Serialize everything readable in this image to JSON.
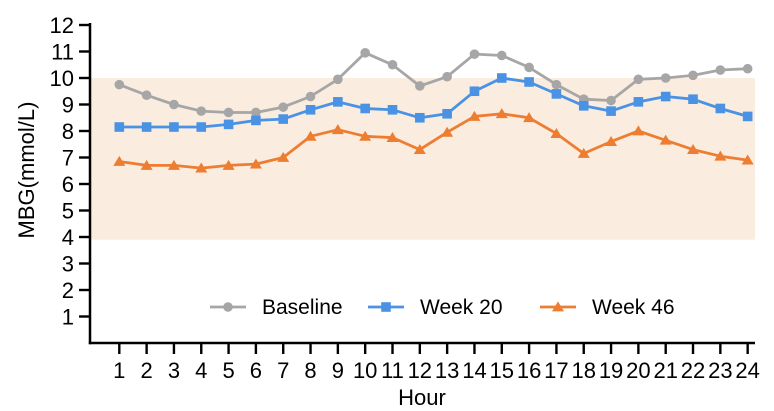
{
  "chart_data": {
    "type": "line",
    "title": "",
    "xlabel": "Hour",
    "ylabel": "MBG(mmol/L)",
    "x": [
      1,
      2,
      3,
      4,
      5,
      6,
      7,
      8,
      9,
      10,
      11,
      12,
      13,
      14,
      15,
      16,
      17,
      18,
      19,
      20,
      21,
      22,
      23,
      24
    ],
    "xtick_labels": [
      "1",
      "2",
      "3",
      "4",
      "5",
      "6",
      "7",
      "8",
      "9",
      "10",
      "11",
      "12",
      "13",
      "14",
      "15",
      "16",
      "17",
      "18",
      "19",
      "20",
      "21",
      "22",
      "23",
      "24"
    ],
    "yticks": [
      1,
      2,
      3,
      4,
      5,
      6,
      7,
      8,
      9,
      10,
      11,
      12
    ],
    "ytick_labels": [
      "1",
      "2",
      "3",
      "4",
      "5",
      "6",
      "7",
      "8",
      "9",
      "10",
      "11",
      "12"
    ],
    "ylim": [
      0,
      12
    ],
    "grid": false,
    "background_color": "#ffffff",
    "axis_color": "#000000",
    "target_band": {
      "from": 3.9,
      "to": 10.0,
      "color": "#fbece0"
    },
    "legend": {
      "position": "bottom-inside",
      "entries": [
        "Baseline",
        "Week 20",
        "Week 46"
      ]
    },
    "series": [
      {
        "name": "Baseline",
        "color": "#a6a6a6",
        "marker": "circle",
        "values": [
          9.75,
          9.35,
          9.0,
          8.75,
          8.7,
          8.7,
          8.9,
          9.3,
          9.95,
          10.95,
          10.5,
          9.7,
          10.05,
          10.9,
          10.85,
          10.4,
          9.75,
          9.2,
          9.15,
          9.95,
          10.0,
          10.1,
          10.3,
          10.35
        ]
      },
      {
        "name": "Week 20",
        "color": "#4a92e4",
        "marker": "square",
        "values": [
          8.15,
          8.15,
          8.15,
          8.15,
          8.25,
          8.4,
          8.45,
          8.8,
          9.1,
          8.85,
          8.8,
          8.5,
          8.65,
          9.5,
          10.0,
          9.85,
          9.4,
          8.95,
          8.75,
          9.1,
          9.3,
          9.2,
          8.85,
          8.55
        ]
      },
      {
        "name": "Week 46",
        "color": "#ed7d31",
        "marker": "triangle",
        "values": [
          6.85,
          6.7,
          6.7,
          6.6,
          6.7,
          6.75,
          7.0,
          7.8,
          8.05,
          7.8,
          7.75,
          7.3,
          7.95,
          8.55,
          8.65,
          8.5,
          7.9,
          7.15,
          7.6,
          8.0,
          7.65,
          7.3,
          7.05,
          6.9
        ]
      }
    ]
  }
}
